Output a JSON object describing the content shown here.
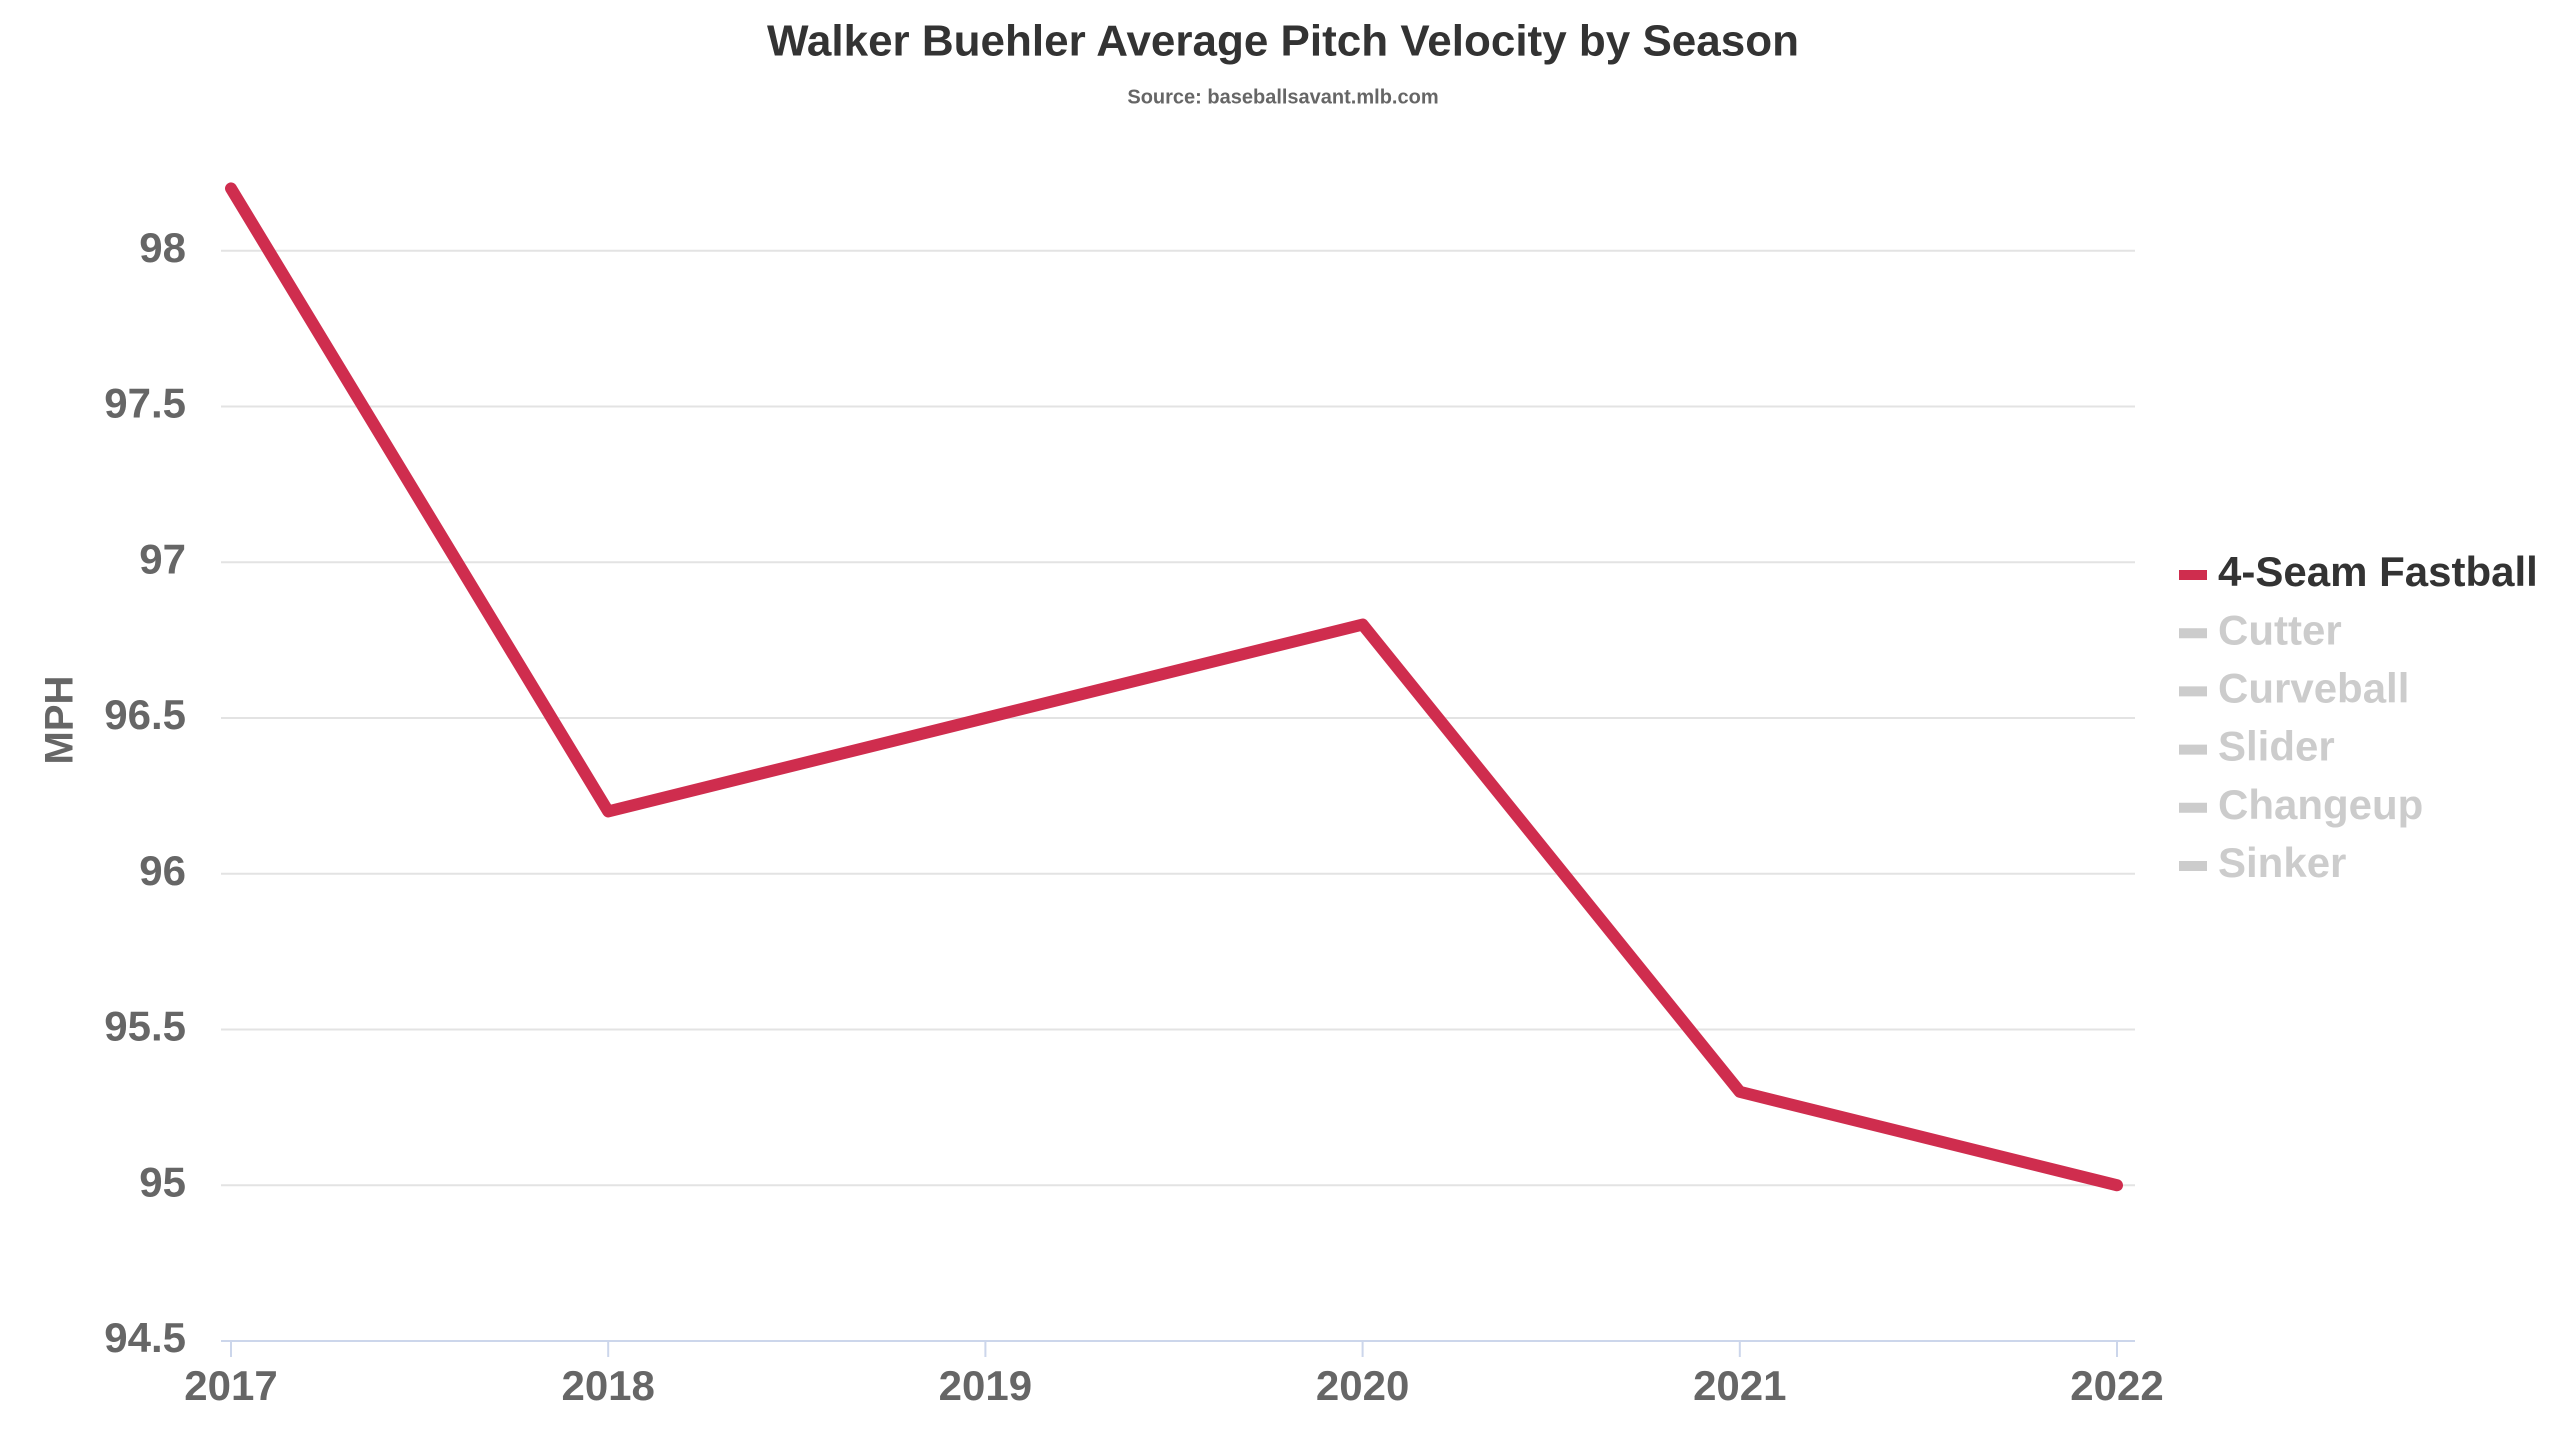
{
  "chart_data": {
    "type": "line",
    "title": "Walker Buehler Average Pitch Velocity by Season",
    "subtitle": "Source: baseballsavant.mlb.com",
    "y_label": "MPH",
    "x": [
      2017,
      2018,
      2019,
      2020,
      2021,
      2022
    ],
    "xticks": [
      2017,
      2018,
      2019,
      2020,
      2021,
      2022
    ],
    "xlim": [
      2017,
      2022
    ],
    "series": [
      {
        "name": "4-Seam Fastball",
        "color": "#cf2d4e",
        "visible": true,
        "values": [
          98.2,
          96.2,
          96.5,
          96.8,
          95.3,
          95.0
        ]
      },
      {
        "name": "Cutter",
        "color": "#cccccc",
        "visible": false
      },
      {
        "name": "Curveball",
        "color": "#cccccc",
        "visible": false
      },
      {
        "name": "Slider",
        "color": "#cccccc",
        "visible": false
      },
      {
        "name": "Changeup",
        "color": "#cccccc",
        "visible": false
      },
      {
        "name": "Sinker",
        "color": "#cccccc",
        "visible": false
      }
    ],
    "ylim": [
      94.5,
      98.5
    ],
    "yticks": [
      {
        "value": 94.5,
        "label": "94.5"
      },
      95,
      {
        "value": 95.5,
        "label": "95.5"
      },
      96,
      {
        "value": 96.5,
        "label": "96.5"
      },
      97,
      {
        "value": 97.5,
        "label": "97.5"
      },
      98
    ],
    "grid": true,
    "legend": "right"
  }
}
